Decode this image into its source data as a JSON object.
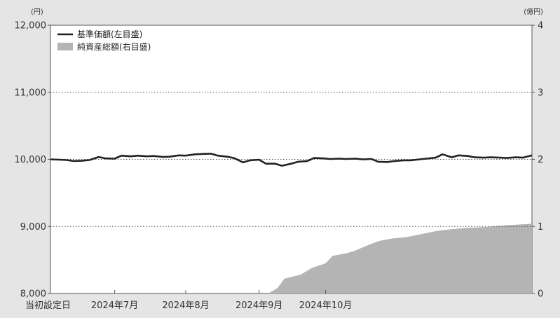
{
  "chart_data": {
    "type": "line",
    "title": "",
    "left_axis": {
      "unit": "(円)",
      "ylim": [
        8000,
        12000
      ],
      "ticks": [
        {
          "value": 8000,
          "label": "8,000"
        },
        {
          "value": 9000,
          "label": "9,000"
        },
        {
          "value": 10000,
          "label": "10,000"
        },
        {
          "value": 11000,
          "label": "11,000"
        },
        {
          "value": 12000,
          "label": "12,000"
        }
      ]
    },
    "right_axis": {
      "unit": "(億円)",
      "ylim": [
        0,
        4
      ],
      "ticks": [
        {
          "value": 0,
          "label": "0"
        },
        {
          "value": 1,
          "label": "1"
        },
        {
          "value": 2,
          "label": "2"
        },
        {
          "value": 3,
          "label": "3"
        },
        {
          "value": 4,
          "label": "4"
        }
      ]
    },
    "grid": {
      "horizontal": true,
      "style": "dotted"
    },
    "legend": {
      "position": "top-left",
      "items": [
        {
          "label": "基準価額(左目盛)",
          "kind": "line",
          "color": "#222222"
        },
        {
          "label": "純資産総額(右目盛)",
          "kind": "area",
          "color": "#b4b4b4"
        }
      ]
    },
    "x_axis": {
      "start_date": "2024-06-03",
      "end_date": "2024-11-05",
      "ticks": [
        {
          "date": "2024-06-03",
          "label": "当初設定日"
        },
        {
          "date": "2024-07-01",
          "label": "2024年7月"
        },
        {
          "date": "2024-08-01",
          "label": "2024年8月"
        },
        {
          "date": "2024-09-02",
          "label": "2024年9月"
        },
        {
          "date": "2024-10-01",
          "label": "2024年10月"
        }
      ]
    },
    "series": [
      {
        "name": "基準価額(左目盛)",
        "axis": "left",
        "type": "line",
        "color": "#222222",
        "points": [
          [
            "2024-06-03",
            10000
          ],
          [
            "2024-06-07",
            9995
          ],
          [
            "2024-06-10",
            9990
          ],
          [
            "2024-06-13",
            9975
          ],
          [
            "2024-06-17",
            9980
          ],
          [
            "2024-06-20",
            9990
          ],
          [
            "2024-06-24",
            10035
          ],
          [
            "2024-06-27",
            10015
          ],
          [
            "2024-07-01",
            10010
          ],
          [
            "2024-07-04",
            10055
          ],
          [
            "2024-07-08",
            10045
          ],
          [
            "2024-07-11",
            10055
          ],
          [
            "2024-07-15",
            10045
          ],
          [
            "2024-07-18",
            10050
          ],
          [
            "2024-07-22",
            10035
          ],
          [
            "2024-07-25",
            10040
          ],
          [
            "2024-07-29",
            10060
          ],
          [
            "2024-08-01",
            10055
          ],
          [
            "2024-08-05",
            10075
          ],
          [
            "2024-08-08",
            10080
          ],
          [
            "2024-08-12",
            10085
          ],
          [
            "2024-08-15",
            10055
          ],
          [
            "2024-08-19",
            10040
          ],
          [
            "2024-08-22",
            10020
          ],
          [
            "2024-08-26",
            9955
          ],
          [
            "2024-08-29",
            9985
          ],
          [
            "2024-09-02",
            9995
          ],
          [
            "2024-09-05",
            9935
          ],
          [
            "2024-09-09",
            9935
          ],
          [
            "2024-09-12",
            9905
          ],
          [
            "2024-09-16",
            9935
          ],
          [
            "2024-09-19",
            9965
          ],
          [
            "2024-09-23",
            9975
          ],
          [
            "2024-09-26",
            10020
          ],
          [
            "2024-09-30",
            10015
          ],
          [
            "2024-10-03",
            10005
          ],
          [
            "2024-10-07",
            10010
          ],
          [
            "2024-10-10",
            10005
          ],
          [
            "2024-10-14",
            10010
          ],
          [
            "2024-10-17",
            10000
          ],
          [
            "2024-10-21",
            10005
          ],
          [
            "2024-10-24",
            9965
          ],
          [
            "2024-10-28",
            9960
          ],
          [
            "2024-10-31",
            9975
          ],
          [
            "2024-11-04",
            9985
          ],
          [
            "2024-11-07",
            9985
          ],
          [
            "2024-11-11",
            10000
          ],
          [
            "2024-11-14",
            10010
          ],
          [
            "2024-11-18",
            10025
          ],
          [
            "2024-11-21",
            10075
          ],
          [
            "2024-11-25",
            10030
          ],
          [
            "2024-11-28",
            10060
          ],
          [
            "2024-12-02",
            10050
          ],
          [
            "2024-12-05",
            10030
          ],
          [
            "2024-12-09",
            10025
          ],
          [
            "2024-12-12",
            10030
          ],
          [
            "2024-12-16",
            10025
          ],
          [
            "2024-12-19",
            10020
          ],
          [
            "2024-12-23",
            10030
          ],
          [
            "2024-12-26",
            10025
          ],
          [
            "2024-12-30",
            10060
          ]
        ]
      },
      {
        "name": "純資産総額(右目盛)",
        "axis": "right",
        "type": "area",
        "color": "#b4b4b4",
        "points": [
          [
            "2024-09-02",
            0
          ],
          [
            "2024-09-06",
            0
          ],
          [
            "2024-09-10",
            0.08
          ],
          [
            "2024-09-13",
            0.22
          ],
          [
            "2024-09-20",
            0.28
          ],
          [
            "2024-09-25",
            0.38
          ],
          [
            "2024-10-01",
            0.45
          ],
          [
            "2024-10-04",
            0.56
          ],
          [
            "2024-10-10",
            0.6
          ],
          [
            "2024-10-14",
            0.64
          ],
          [
            "2024-10-18",
            0.7
          ],
          [
            "2024-10-24",
            0.78
          ],
          [
            "2024-10-30",
            0.82
          ],
          [
            "2024-11-05",
            0.84
          ],
          [
            "2024-11-11",
            0.88
          ],
          [
            "2024-11-18",
            0.93
          ],
          [
            "2024-11-25",
            0.96
          ],
          [
            "2024-12-02",
            0.98
          ],
          [
            "2024-12-09",
            0.99
          ],
          [
            "2024-12-16",
            1.01
          ],
          [
            "2024-12-30",
            1.04
          ]
        ]
      }
    ]
  }
}
